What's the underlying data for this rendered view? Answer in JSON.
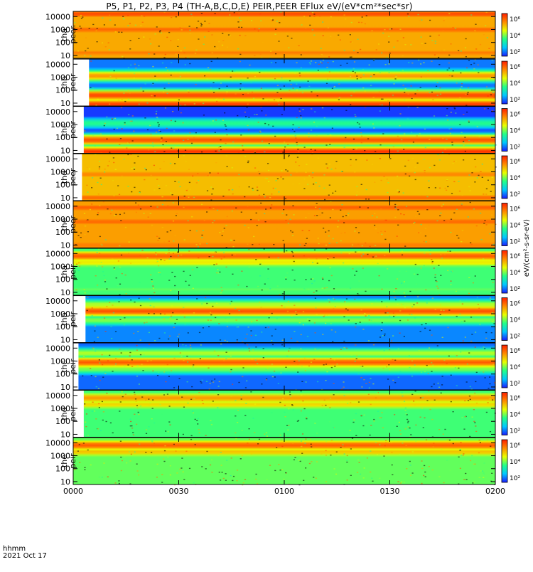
{
  "chart_data": {
    "type": "heatmap",
    "title": "P5, P1, P2, P3, P4 (TH-A,B,C,D,E) PEIR,PEER EFlux eV/(eV*cm²*sec*sr)",
    "x_axis": {
      "unit_label": "hhmm",
      "date_label": "2021 Oct 17",
      "tick_labels": [
        "0000",
        "0030",
        "0100",
        "0130",
        "0200"
      ],
      "range_minutes": [
        0,
        120
      ]
    },
    "y_axis": {
      "scale": "log",
      "tick_labels": [
        "10",
        "100",
        "1000",
        "10000"
      ],
      "unit": "eV"
    },
    "colorbar": {
      "scale": "log",
      "tick_labels": [
        "10²",
        "10⁴",
        "10⁶"
      ],
      "unit_label": "eV/(cm²-s-sr-eV)",
      "colormap": [
        "#1b1bff",
        "#00c8ff",
        "#22ff88",
        "#e8ff00",
        "#ff8c00",
        "#ff1e00"
      ]
    },
    "panels": [
      {
        "probe": "tha",
        "species": "peer",
        "label_line1": "tha",
        "label_line2": "peer",
        "start_min": 0,
        "bg_floor": 5.2,
        "bands": [
          [
            4.2,
            6.2
          ],
          [
            3.0,
            5.9
          ],
          [
            1.2,
            5.7
          ]
        ],
        "cb_label": "(eV)"
      },
      {
        "probe": "thb",
        "species": "peer",
        "label_line1": "thb",
        "label_line2": "peer",
        "start_min": 4.5,
        "bg_floor": 1.6,
        "bands": [
          [
            3.1,
            5.4
          ],
          [
            1.6,
            6.2
          ],
          [
            0.9,
            6.3
          ]
        ],
        "cb_label": "(eV)"
      },
      {
        "probe": "thc",
        "species": "peer",
        "label_line1": "thc",
        "label_line2": "peer",
        "start_min": 3,
        "bg_floor": 1.2,
        "bands": [
          [
            3.1,
            3.2
          ],
          [
            1.8,
            6.1
          ],
          [
            0.9,
            6.4
          ]
        ],
        "cb_label": "(eV)"
      },
      {
        "probe": "thd",
        "species": "peer",
        "label_line1": "thd",
        "label_line2": "peer",
        "start_min": 2.5,
        "bg_floor": 5.0,
        "bands": [
          [
            4.0,
            5.0
          ],
          [
            2.8,
            5.6
          ],
          [
            1.0,
            5.9
          ]
        ],
        "cb_label": "(eV)"
      },
      {
        "probe": "the",
        "species": "peer",
        "label_line1": "the",
        "label_line2": "peer",
        "start_min": 0,
        "bg_floor": 5.3,
        "bands": [
          [
            3.9,
            6.0
          ],
          [
            2.8,
            5.9
          ],
          [
            1.0,
            5.7
          ]
        ],
        "cb_label": "(eV)"
      },
      {
        "probe": "tha",
        "species": "peir",
        "label_line1": "tha",
        "label_line2": "peir",
        "start_min": 0,
        "bg_floor": 3.4,
        "bands": [
          [
            3.8,
            6.0
          ],
          [
            3.3,
            4.6
          ],
          [
            1.2,
            3.6
          ]
        ],
        "cb_label": "(eV)"
      },
      {
        "probe": "thb",
        "species": "peir",
        "label_line1": "thb",
        "label_line2": "peir",
        "start_min": 3.5,
        "bg_floor": 1.7,
        "bands": [
          [
            3.7,
            4.1
          ],
          [
            3.2,
            6.1
          ],
          [
            2.5,
            3.8
          ]
        ],
        "cb_label": "(eV)"
      },
      {
        "probe": "thc",
        "species": "peir",
        "label_line1": "thc",
        "label_line2": "peir",
        "start_min": 1.5,
        "bg_floor": 1.5,
        "bands": [
          [
            3.6,
            4.1
          ],
          [
            2.9,
            6.0
          ],
          [
            2.4,
            3.8
          ]
        ],
        "cb_label": "(eV)"
      },
      {
        "probe": "thd",
        "species": "peir",
        "label_line1": "thd",
        "label_line2": "peir",
        "start_min": 3,
        "bg_floor": 3.4,
        "bands": [
          [
            3.8,
            5.4
          ],
          [
            3.3,
            4.8
          ],
          [
            1.2,
            3.4
          ]
        ],
        "cb_label": "(eV)"
      },
      {
        "probe": "the",
        "species": "peir",
        "label_line1": "the",
        "label_line2": "peir",
        "start_min": 0,
        "bg_floor": 3.6,
        "bands": [
          [
            3.8,
            6.0
          ],
          [
            3.3,
            5.0
          ],
          [
            1.2,
            3.6
          ]
        ],
        "cb_label": "(eV)"
      }
    ],
    "grid": false,
    "legend": "colorbar right of each panel"
  }
}
